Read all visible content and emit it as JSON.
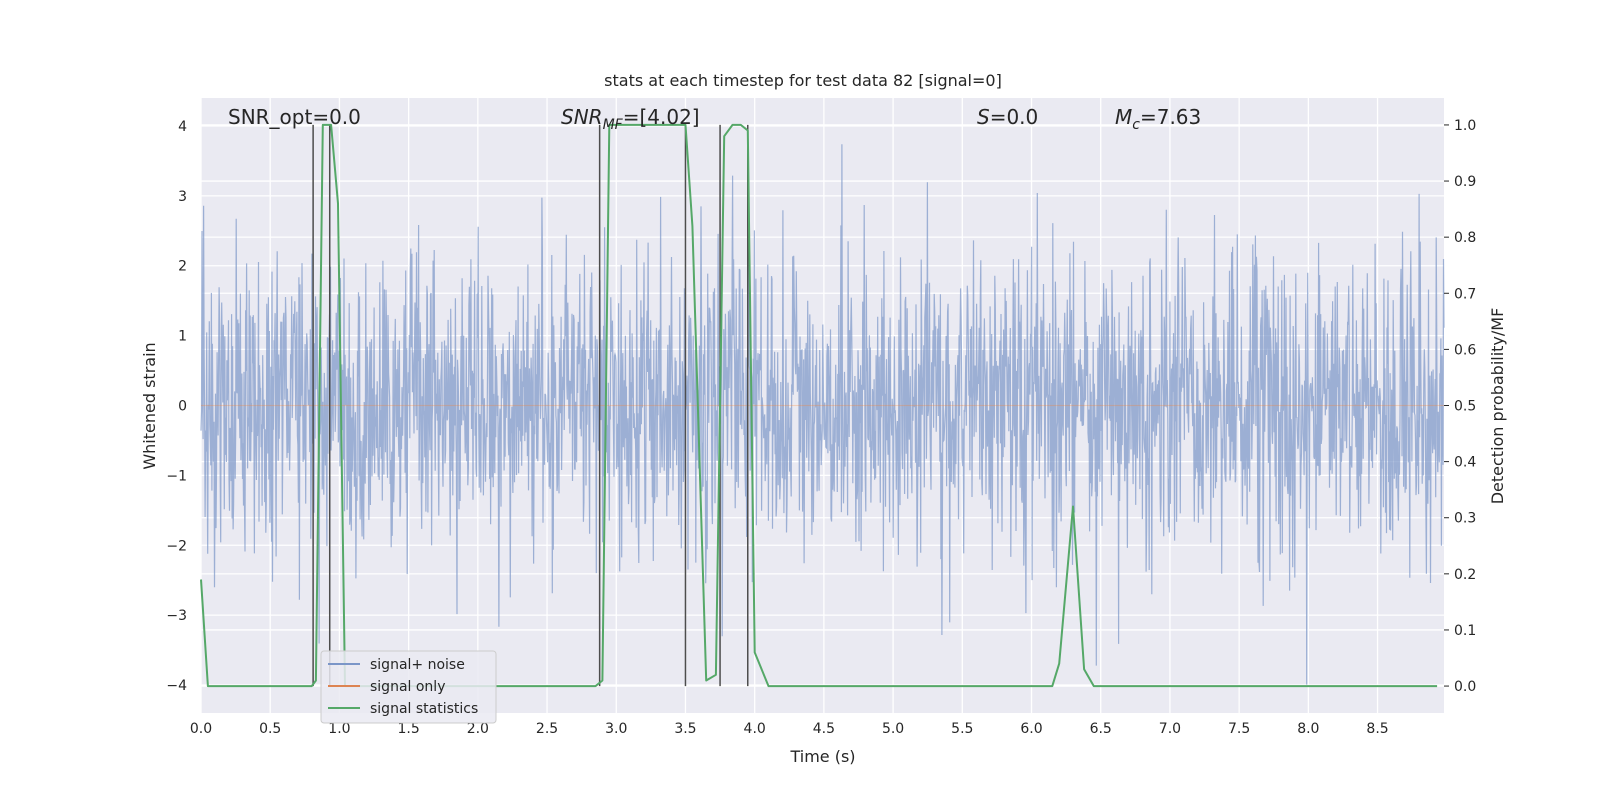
{
  "chart_data": {
    "type": "line",
    "title": "stats at each timestep for test data 82 [signal=0]",
    "xlabel": "Time (s)",
    "ylabel_left": "Whitened strain",
    "ylabel_right": "Detection probability/MF",
    "xlim": [
      0.0,
      8.98
    ],
    "ylim_left": [
      -4.4,
      4.4
    ],
    "ylim_right": [
      -0.048,
      1.048
    ],
    "x_ticks": [
      "0.0",
      "0.5",
      "1.0",
      "1.5",
      "2.0",
      "2.5",
      "3.0",
      "3.5",
      "4.0",
      "4.5",
      "5.0",
      "5.5",
      "6.0",
      "6.5",
      "7.0",
      "7.5",
      "8.0",
      "8.5"
    ],
    "y_ticks_left": [
      "−4",
      "−3",
      "−2",
      "−1",
      "0",
      "1",
      "2",
      "3",
      "4"
    ],
    "y_ticks_right": [
      "0.0",
      "0.1",
      "0.2",
      "0.3",
      "0.4",
      "0.5",
      "0.6",
      "0.7",
      "0.8",
      "0.9",
      "1.0"
    ],
    "grid": true,
    "legend_position": "lower-left",
    "annotations": [
      {
        "text": "SNR_opt=0.0",
        "x": 0.2
      },
      {
        "text": "SNR_MF=[4.02]",
        "x": 2.6
      },
      {
        "text": "S=0.0",
        "x": 5.6
      },
      {
        "text": "M_c=7.63",
        "x": 6.6
      }
    ],
    "series": [
      {
        "name": "signal+ noise",
        "axis": "left",
        "color": "#7b96c8",
        "description_of_shape": "whitened noise strain, roughly Gaussian with unit scale, occasional spikes up to about ±4",
        "envelope_abs_max": 4.1
      },
      {
        "name": "signal only",
        "axis": "left",
        "color": "#dd8452",
        "values_constant": 0
      },
      {
        "name": "signal statistics",
        "axis": "right",
        "color": "#55a868",
        "x": [
          0.0,
          0.05,
          0.1,
          0.2,
          0.3,
          0.4,
          0.5,
          0.6,
          0.7,
          0.8,
          0.83,
          0.88,
          0.94,
          0.99,
          1.04,
          1.09,
          1.14,
          1.2,
          1.3,
          1.5,
          2.0,
          2.5,
          2.6,
          2.85,
          2.9,
          2.95,
          3.0,
          3.1,
          3.2,
          3.3,
          3.4,
          3.5,
          3.55,
          3.65,
          3.72,
          3.78,
          3.84,
          3.9,
          3.95,
          4.0,
          4.1,
          4.2,
          4.5,
          5.0,
          5.5,
          6.0,
          6.15,
          6.2,
          6.3,
          6.38,
          6.45,
          6.5,
          7.0,
          7.5,
          8.0,
          8.5,
          8.93
        ],
        "values": [
          0.19,
          0.0,
          0.0,
          0.0,
          0.0,
          0.0,
          0.0,
          0.0,
          0.0,
          0.0,
          0.01,
          1.0,
          1.0,
          0.86,
          0.0,
          0.0,
          0.0,
          0.0,
          0.0,
          0.0,
          0.0,
          0.0,
          0.0,
          0.0,
          0.01,
          1.0,
          1.0,
          1.0,
          1.0,
          1.0,
          1.0,
          1.0,
          0.82,
          0.01,
          0.02,
          0.98,
          1.0,
          1.0,
          0.99,
          0.06,
          0.0,
          0.0,
          0.0,
          0.0,
          0.0,
          0.0,
          0.0,
          0.04,
          0.32,
          0.03,
          0.0,
          0.0,
          0.0,
          0.0,
          0.0,
          0.0,
          0.0
        ]
      }
    ],
    "vertical_lines": {
      "color": "#4d4d4d",
      "x": [
        0.81,
        0.93,
        2.88,
        3.5,
        3.75,
        3.95
      ],
      "range_right": [
        0.0,
        1.0
      ]
    }
  }
}
